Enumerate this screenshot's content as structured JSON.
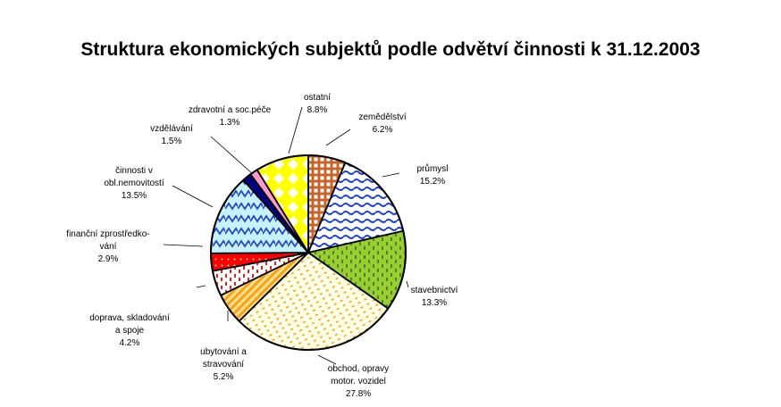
{
  "chart_data": {
    "type": "pie",
    "title": "Struktura ekonomických subjektů podle odvětví činnosti k 31.12.2003",
    "start_angle_deg": 0,
    "direction": "clockwise",
    "slices": [
      {
        "label": [
          "zemědělství",
          "6.2%"
        ],
        "value": 6.2,
        "fill": "#d97a3a",
        "pattern": "grid-brown"
      },
      {
        "label": [
          "průmysl",
          "15.2%"
        ],
        "value": 15.2,
        "fill": "#ffffff",
        "pattern": "waves-blue"
      },
      {
        "label": [
          "stavebnictví",
          "13.3%"
        ],
        "value": 13.3,
        "fill": "#9acd32",
        "pattern": "dashes-green"
      },
      {
        "label": [
          "obchod, opravy",
          "motor. vozidel",
          "27.8%"
        ],
        "value": 27.8,
        "fill": "#ffffdd",
        "pattern": "dots-orange"
      },
      {
        "label": [
          "ubytování a",
          "stravování",
          "5.2%"
        ],
        "value": 5.2,
        "fill": "#ffd27f",
        "pattern": "diag-orange"
      },
      {
        "label": [
          "doprava, skladování",
          "a spoje",
          "4.2%"
        ],
        "value": 4.2,
        "fill": "#ffffff",
        "pattern": "ticks-red"
      },
      {
        "label": [
          "finanční zprostředko-",
          "vání",
          "2.9%"
        ],
        "value": 2.9,
        "fill": "#ff0000",
        "pattern": "dots-white"
      },
      {
        "label": [
          "činnosti v",
          "obl.nemovitostí",
          "13.5%"
        ],
        "value": 13.5,
        "fill": "#bfefff",
        "pattern": "zigzag-blue"
      },
      {
        "label": [
          "vzdělávání",
          "1.5%"
        ],
        "value": 1.5,
        "fill": "#000080",
        "pattern": "solid"
      },
      {
        "label": [
          "zdravotní a soc.péče",
          "1.3%"
        ],
        "value": 1.3,
        "fill": "#ff99cc",
        "pattern": "solid"
      },
      {
        "label": [
          "ostatní",
          "8.8%"
        ],
        "value": 8.8,
        "fill": "#ffff00",
        "pattern": "diamonds-white"
      }
    ]
  }
}
